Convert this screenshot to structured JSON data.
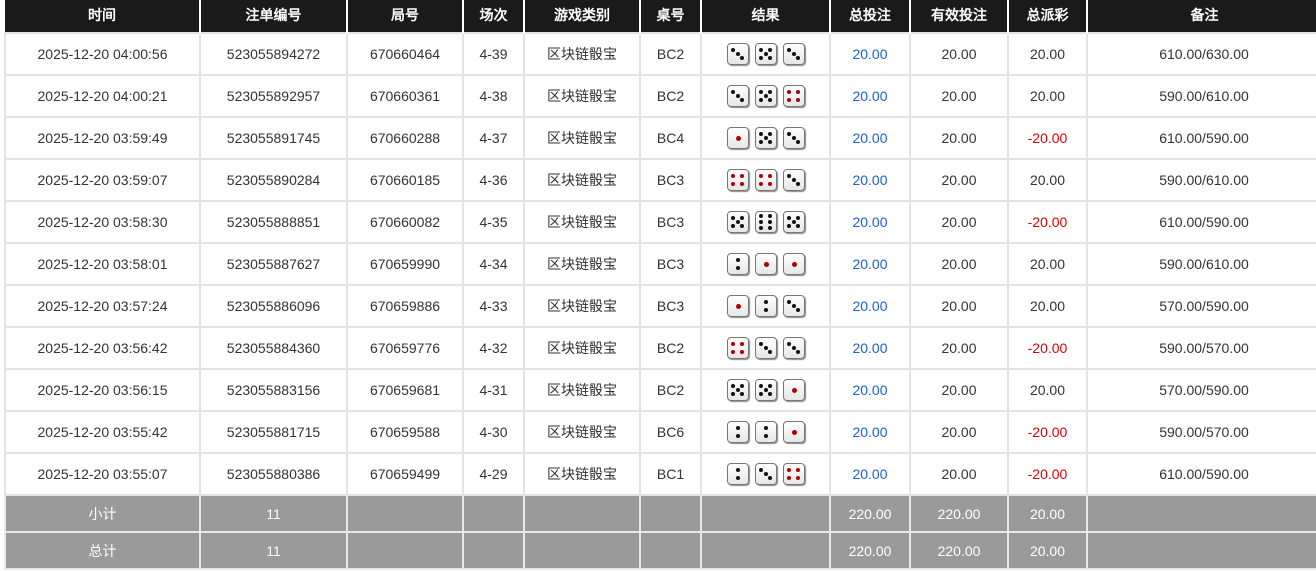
{
  "headers": [
    "时间",
    "注单编号",
    "局号",
    "场次",
    "游戏类别",
    "桌号",
    "结果",
    "总投注",
    "有效投注",
    "总派彩",
    "备注"
  ],
  "rows": [
    {
      "time": "2025-12-20 04:00:56",
      "bet_id": "523055894272",
      "round": "670660464",
      "session": "4-39",
      "game": "区块链骰宝",
      "table": "BC2",
      "dice": [
        3,
        5,
        3
      ],
      "total_bet": "20.00",
      "valid_bet": "20.00",
      "payout": "20.00",
      "note": "610.00/630.00"
    },
    {
      "time": "2025-12-20 04:00:21",
      "bet_id": "523055892957",
      "round": "670660361",
      "session": "4-38",
      "game": "区块链骰宝",
      "table": "BC2",
      "dice": [
        3,
        5,
        4
      ],
      "total_bet": "20.00",
      "valid_bet": "20.00",
      "payout": "20.00",
      "note": "590.00/610.00"
    },
    {
      "time": "2025-12-20 03:59:49",
      "bet_id": "523055891745",
      "round": "670660288",
      "session": "4-37",
      "game": "区块链骰宝",
      "table": "BC4",
      "dice": [
        1,
        5,
        3
      ],
      "total_bet": "20.00",
      "valid_bet": "20.00",
      "payout": "-20.00",
      "note": "610.00/590.00"
    },
    {
      "time": "2025-12-20 03:59:07",
      "bet_id": "523055890284",
      "round": "670660185",
      "session": "4-36",
      "game": "区块链骰宝",
      "table": "BC3",
      "dice": [
        4,
        4,
        3
      ],
      "total_bet": "20.00",
      "valid_bet": "20.00",
      "payout": "20.00",
      "note": "590.00/610.00"
    },
    {
      "time": "2025-12-20 03:58:30",
      "bet_id": "523055888851",
      "round": "670660082",
      "session": "4-35",
      "game": "区块链骰宝",
      "table": "BC3",
      "dice": [
        5,
        6,
        5
      ],
      "total_bet": "20.00",
      "valid_bet": "20.00",
      "payout": "-20.00",
      "note": "610.00/590.00"
    },
    {
      "time": "2025-12-20 03:58:01",
      "bet_id": "523055887627",
      "round": "670659990",
      "session": "4-34",
      "game": "区块链骰宝",
      "table": "BC3",
      "dice": [
        2,
        1,
        1
      ],
      "total_bet": "20.00",
      "valid_bet": "20.00",
      "payout": "20.00",
      "note": "590.00/610.00"
    },
    {
      "time": "2025-12-20 03:57:24",
      "bet_id": "523055886096",
      "round": "670659886",
      "session": "4-33",
      "game": "区块链骰宝",
      "table": "BC3",
      "dice": [
        1,
        2,
        3
      ],
      "total_bet": "20.00",
      "valid_bet": "20.00",
      "payout": "20.00",
      "note": "570.00/590.00"
    },
    {
      "time": "2025-12-20 03:56:42",
      "bet_id": "523055884360",
      "round": "670659776",
      "session": "4-32",
      "game": "区块链骰宝",
      "table": "BC2",
      "dice": [
        4,
        3,
        3
      ],
      "total_bet": "20.00",
      "valid_bet": "20.00",
      "payout": "-20.00",
      "note": "590.00/570.00"
    },
    {
      "time": "2025-12-20 03:56:15",
      "bet_id": "523055883156",
      "round": "670659681",
      "session": "4-31",
      "game": "区块链骰宝",
      "table": "BC2",
      "dice": [
        5,
        5,
        1
      ],
      "total_bet": "20.00",
      "valid_bet": "20.00",
      "payout": "20.00",
      "note": "570.00/590.00"
    },
    {
      "time": "2025-12-20 03:55:42",
      "bet_id": "523055881715",
      "round": "670659588",
      "session": "4-30",
      "game": "区块链骰宝",
      "table": "BC6",
      "dice": [
        2,
        2,
        1
      ],
      "total_bet": "20.00",
      "valid_bet": "20.00",
      "payout": "-20.00",
      "note": "590.00/570.00"
    },
    {
      "time": "2025-12-20 03:55:07",
      "bet_id": "523055880386",
      "round": "670659499",
      "session": "4-29",
      "game": "区块链骰宝",
      "table": "BC1",
      "dice": [
        2,
        3,
        4
      ],
      "total_bet": "20.00",
      "valid_bet": "20.00",
      "payout": "-20.00",
      "note": "610.00/590.00"
    }
  ],
  "subtotal": {
    "label": "小计",
    "count": "11",
    "total_bet": "220.00",
    "valid_bet": "220.00",
    "payout": "20.00"
  },
  "grand_total": {
    "label": "总计",
    "count": "11",
    "total_bet": "220.00",
    "valid_bet": "220.00",
    "payout": "20.00"
  },
  "colors": {
    "header_bg": "#1a1a1a",
    "bet_blue": "#1a5fd6",
    "loss_red": "#e00000",
    "summary_bg": "#9a9a9a"
  }
}
